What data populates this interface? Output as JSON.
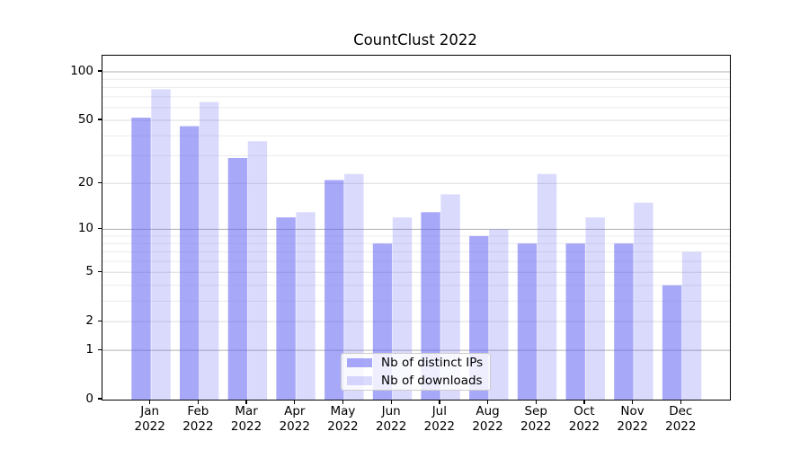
{
  "title": "CountClust 2022",
  "chart_data": {
    "type": "bar",
    "title": "CountClust 2022",
    "categories": [
      "Jan 2022",
      "Feb 2022",
      "Mar 2022",
      "Apr 2022",
      "May 2022",
      "Jun 2022",
      "Jul 2022",
      "Aug 2022",
      "Sep 2022",
      "Oct 2022",
      "Nov 2022",
      "Dec 2022"
    ],
    "series": [
      {
        "name": "Nb of distinct IPs",
        "values": [
          52,
          46,
          29,
          12,
          21,
          8,
          13,
          9,
          8,
          8,
          8,
          4
        ],
        "fill": "rgba(99,99,245,0.56)"
      },
      {
        "name": "Nb of downloads",
        "values": [
          78,
          65,
          37,
          13,
          23,
          12,
          17,
          10,
          23,
          12,
          15,
          7
        ],
        "fill": "rgba(99,99,245,0.235)"
      }
    ],
    "xlabel": "",
    "ylabel": "",
    "yscale": "log1p",
    "ylim": [
      0,
      126
    ],
    "y_major_ticks": [
      100,
      50,
      20,
      10,
      5,
      2,
      1,
      0
    ],
    "y_decade_gridlines": [
      1,
      10,
      100
    ],
    "y_submajor_gridlines": [
      2,
      5,
      20,
      50
    ],
    "y_minor_gridlines": [
      3,
      4,
      6,
      7,
      8,
      9,
      30,
      40,
      60,
      70,
      80,
      90
    ],
    "grid": true,
    "legend": {
      "position": "lower center",
      "entries": [
        "Nb of distinct IPs",
        "Nb of downloads"
      ]
    },
    "colors": {
      "bar_base": "#6363f5",
      "grid_decade": "#b0b0b0",
      "grid_submajor": "#dcdcdc",
      "grid_minor": "#ececec",
      "spine": "#000000",
      "text": "#000000",
      "legend_bg": "rgba(255,255,255,0.8)",
      "legend_border": "#cccccc"
    }
  }
}
